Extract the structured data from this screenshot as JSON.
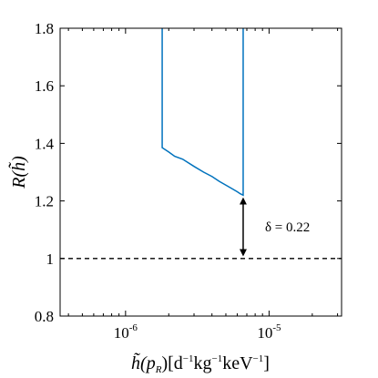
{
  "chart_data": {
    "type": "line",
    "title": "",
    "xlabel_parts": {
      "pre": "h̃(p",
      "sub": "R",
      "mid": ")[d",
      "e1": "−1",
      "kg": "kg",
      "e2": "−1",
      "kev": "keV",
      "e3": "−1",
      "post": "]"
    },
    "ylabel": "R(h̃)",
    "xscale": "log",
    "xlim": [
      3.5e-07,
      3.2e-05
    ],
    "ylim": [
      0.8,
      1.8
    ],
    "yticks": [
      "0.8",
      "1",
      "1.2",
      "1.4",
      "1.6",
      "1.8"
    ],
    "xticks": [
      {
        "base": "10",
        "exp": "-6",
        "value": 1e-06
      },
      {
        "base": "10",
        "exp": "-5",
        "value": 1e-05
      }
    ],
    "series": [
      {
        "color": "#0072BD",
        "x": [
          1.8e-06,
          1.8e-06,
          2e-06,
          2.2e-06,
          2.5e-06,
          3e-06,
          3.5e-06,
          4e-06,
          4.5e-06,
          5e-06,
          5.5e-06,
          6e-06,
          6.3e-06,
          6.6e-06,
          6.6e-06
        ],
        "y": [
          1.8,
          1.385,
          1.37,
          1.355,
          1.345,
          1.32,
          1.3,
          1.285,
          1.268,
          1.255,
          1.243,
          1.232,
          1.225,
          1.22,
          1.8
        ]
      }
    ],
    "reference_line": {
      "y": 1.0,
      "style": "dashed",
      "color": "#000000"
    },
    "annotation": {
      "text": "δ = 0.22",
      "arrow_x": 6.6e-06,
      "arrow_y": [
        1.02,
        1.2
      ]
    }
  }
}
